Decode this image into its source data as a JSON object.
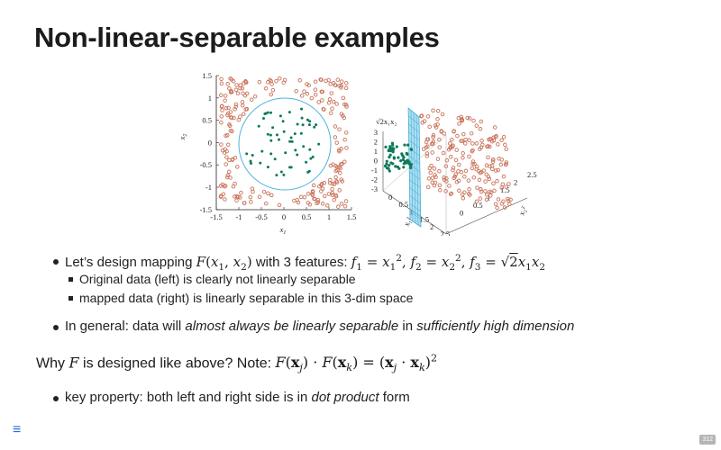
{
  "slide": {
    "title": "Non-linear-separable examples",
    "page_number": "312",
    "menu_icon": "hamburger-menu-icon"
  },
  "figure": {
    "left_plot": {
      "xticks": [
        "-1.5",
        "-1",
        "-0.5",
        "0",
        "0.5",
        "1",
        "1.5"
      ],
      "yticks": [
        "1.5",
        "1",
        "0.5",
        "0",
        "-0.5",
        "-1",
        "-1.5"
      ],
      "xlabel_base": "x",
      "xlabel_sub": "1",
      "ylabel_base": "x",
      "ylabel_sub": "2",
      "colors": {
        "outer": "#c9735a",
        "inner": "#0d7a5a",
        "circle": "#4bb4de"
      }
    },
    "right_plot": {
      "zlabel": "√2x₁x₂",
      "zticks": [
        "3",
        "2",
        "1",
        "0",
        "-1",
        "-2",
        "-3"
      ],
      "xticks": [
        "0",
        "0.5",
        "1",
        "1.5",
        "2",
        "2.5"
      ],
      "yticks": [
        "2.5",
        "2",
        "1.5",
        "1",
        "0.5",
        "0"
      ],
      "xlabel": "x₁²",
      "ylabel": "x₂²"
    }
  },
  "bullets": {
    "b1_prefix": "Let’s design mapping ",
    "b1_mid": " with 3 features: ",
    "sub1": "Original data (left) is clearly not linearly separable",
    "sub2": "mapped data (right) is linearly separable in this 3-dim space",
    "b2_prefix": "In general: data will ",
    "b2_em1": "almost always be linearly separable",
    "b2_mid": " in ",
    "b2_em2": "sufficiently high dimension",
    "b3_prefix": "key property: both left and right side is in ",
    "b3_em": "dot product",
    "b3_suffix": " form"
  },
  "why": {
    "prefix": "Why ",
    "mid": " is designed like above? Note: "
  }
}
